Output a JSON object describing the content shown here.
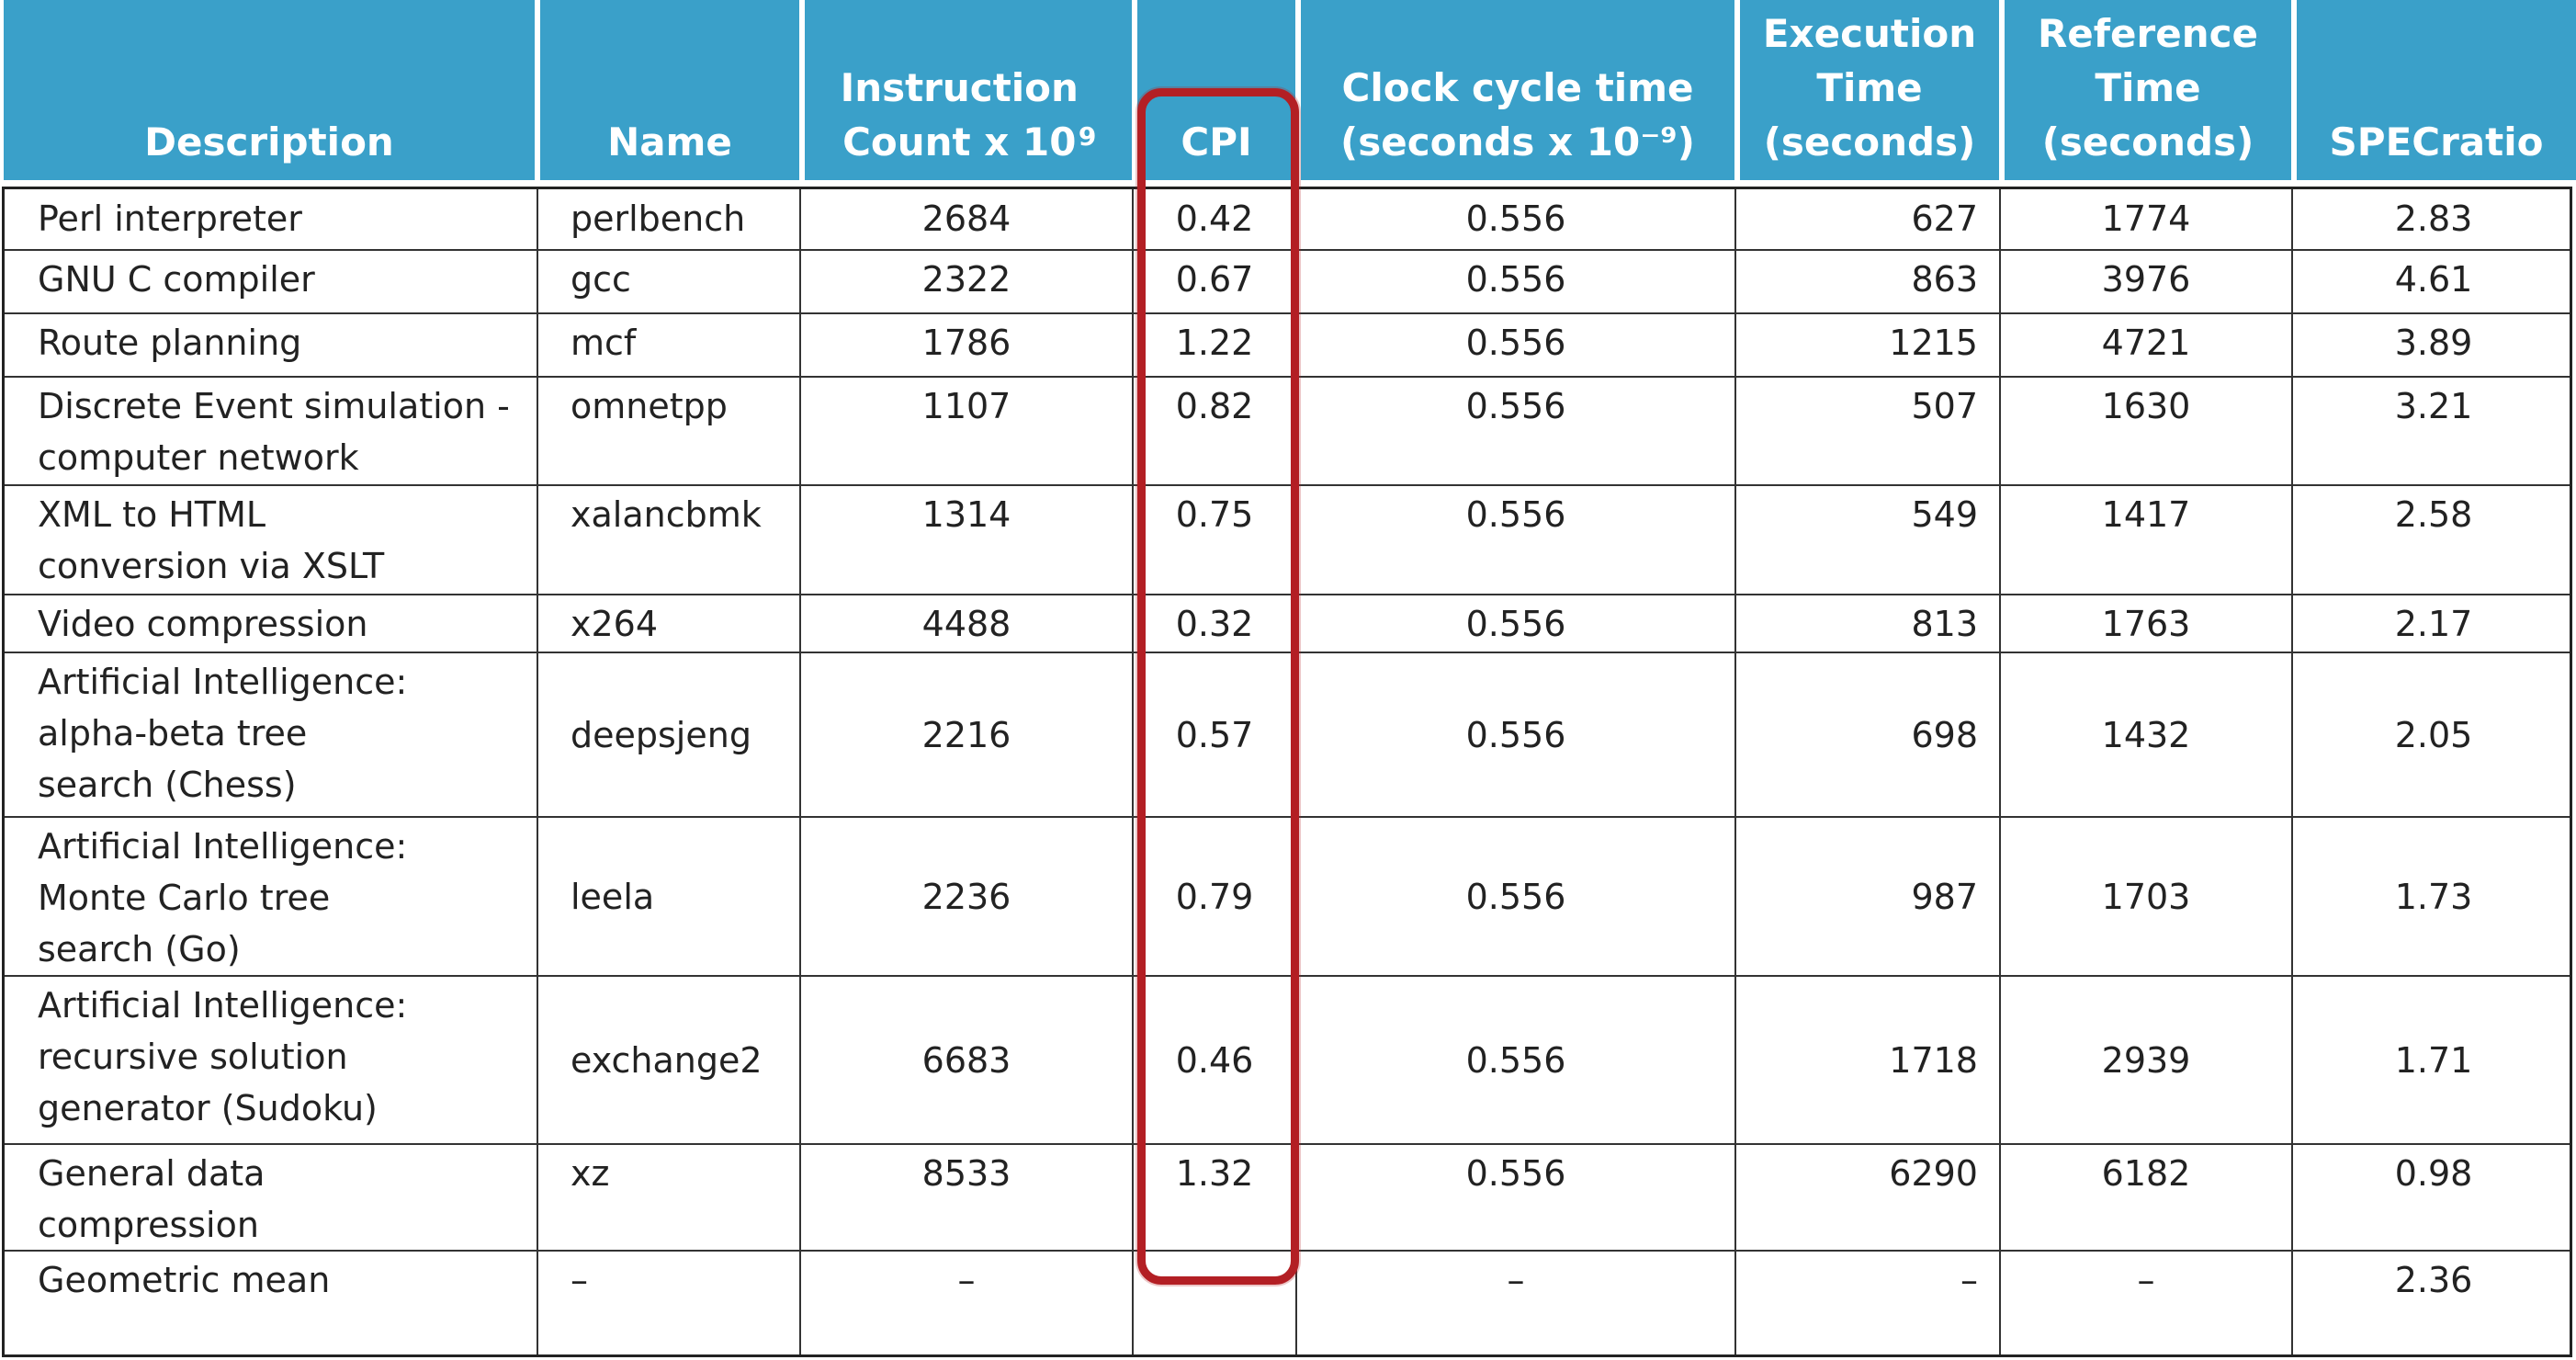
{
  "table": {
    "headers": {
      "description": "Description",
      "name": "Name",
      "instruction_count": "Instruction\nCount x 10",
      "instruction_count_exp": "9",
      "cpi": "CPI",
      "clock_cycle": "Clock cycle time\n(seconds x 10⁻⁹)",
      "execution_time": "Execution\nTime\n(seconds)",
      "reference_time": "Reference\nTime\n(seconds)",
      "specratio": "SPECratio"
    },
    "rows": [
      {
        "description": "Perl interpreter",
        "name": "perlbench",
        "instruction_count": "2684",
        "cpi": "0.42",
        "clock_cycle": "0.556",
        "execution_time": "627",
        "reference_time": "1774",
        "specratio": "2.83"
      },
      {
        "description": "GNU C compiler",
        "name": "gcc",
        "instruction_count": "2322",
        "cpi": "0.67",
        "clock_cycle": "0.556",
        "execution_time": "863",
        "reference_time": "3976",
        "specratio": "4.61"
      },
      {
        "description": "Route planning",
        "name": "mcf",
        "instruction_count": "1786",
        "cpi": "1.22",
        "clock_cycle": "0.556",
        "execution_time": "1215",
        "reference_time": "4721",
        "specratio": "3.89"
      },
      {
        "description": "Discrete Event simulation -\ncomputer network",
        "name": "omnetpp",
        "instruction_count": "1107",
        "cpi": "0.82",
        "clock_cycle": "0.556",
        "execution_time": "507",
        "reference_time": "1630",
        "specratio": "3.21"
      },
      {
        "description": "XML to HTML\nconversion via XSLT",
        "name": "xalancbmk",
        "instruction_count": "1314",
        "cpi": "0.75",
        "clock_cycle": "0.556",
        "execution_time": "549",
        "reference_time": "1417",
        "specratio": "2.58"
      },
      {
        "description": "Video compression",
        "name": "x264",
        "instruction_count": "4488",
        "cpi": "0.32",
        "clock_cycle": "0.556",
        "execution_time": "813",
        "reference_time": "1763",
        "specratio": "2.17"
      },
      {
        "description": "Artificial Intelligence:\nalpha-beta tree\nsearch (Chess)",
        "name": "deepsjeng",
        "instruction_count": "2216",
        "cpi": "0.57",
        "clock_cycle": "0.556",
        "execution_time": "698",
        "reference_time": "1432",
        "specratio": "2.05"
      },
      {
        "description": "Artificial Intelligence:\nMonte Carlo tree\nsearch (Go)",
        "name": "leela",
        "instruction_count": "2236",
        "cpi": "0.79",
        "clock_cycle": "0.556",
        "execution_time": "987",
        "reference_time": "1703",
        "specratio": "1.73"
      },
      {
        "description": "Artificial Intelligence:\nrecursive solution\ngenerator (Sudoku)",
        "name": "exchange2",
        "instruction_count": "6683",
        "cpi": "0.46",
        "clock_cycle": "0.556",
        "execution_time": "1718",
        "reference_time": "2939",
        "specratio": "1.71"
      },
      {
        "description": "General data\ncompression",
        "name": "xz",
        "instruction_count": "8533",
        "cpi": "1.32",
        "clock_cycle": "0.556",
        "execution_time": "6290",
        "reference_time": "6182",
        "specratio": "0.98"
      },
      {
        "description": "Geometric mean",
        "name": "–",
        "instruction_count": "–",
        "cpi": "–",
        "clock_cycle": "–",
        "execution_time": "–",
        "reference_time": "–",
        "specratio": "2.36"
      }
    ]
  },
  "colors": {
    "header_bg": "#3aa0c9",
    "header_text": "#ffffff",
    "highlight_border": "#b31f24"
  }
}
